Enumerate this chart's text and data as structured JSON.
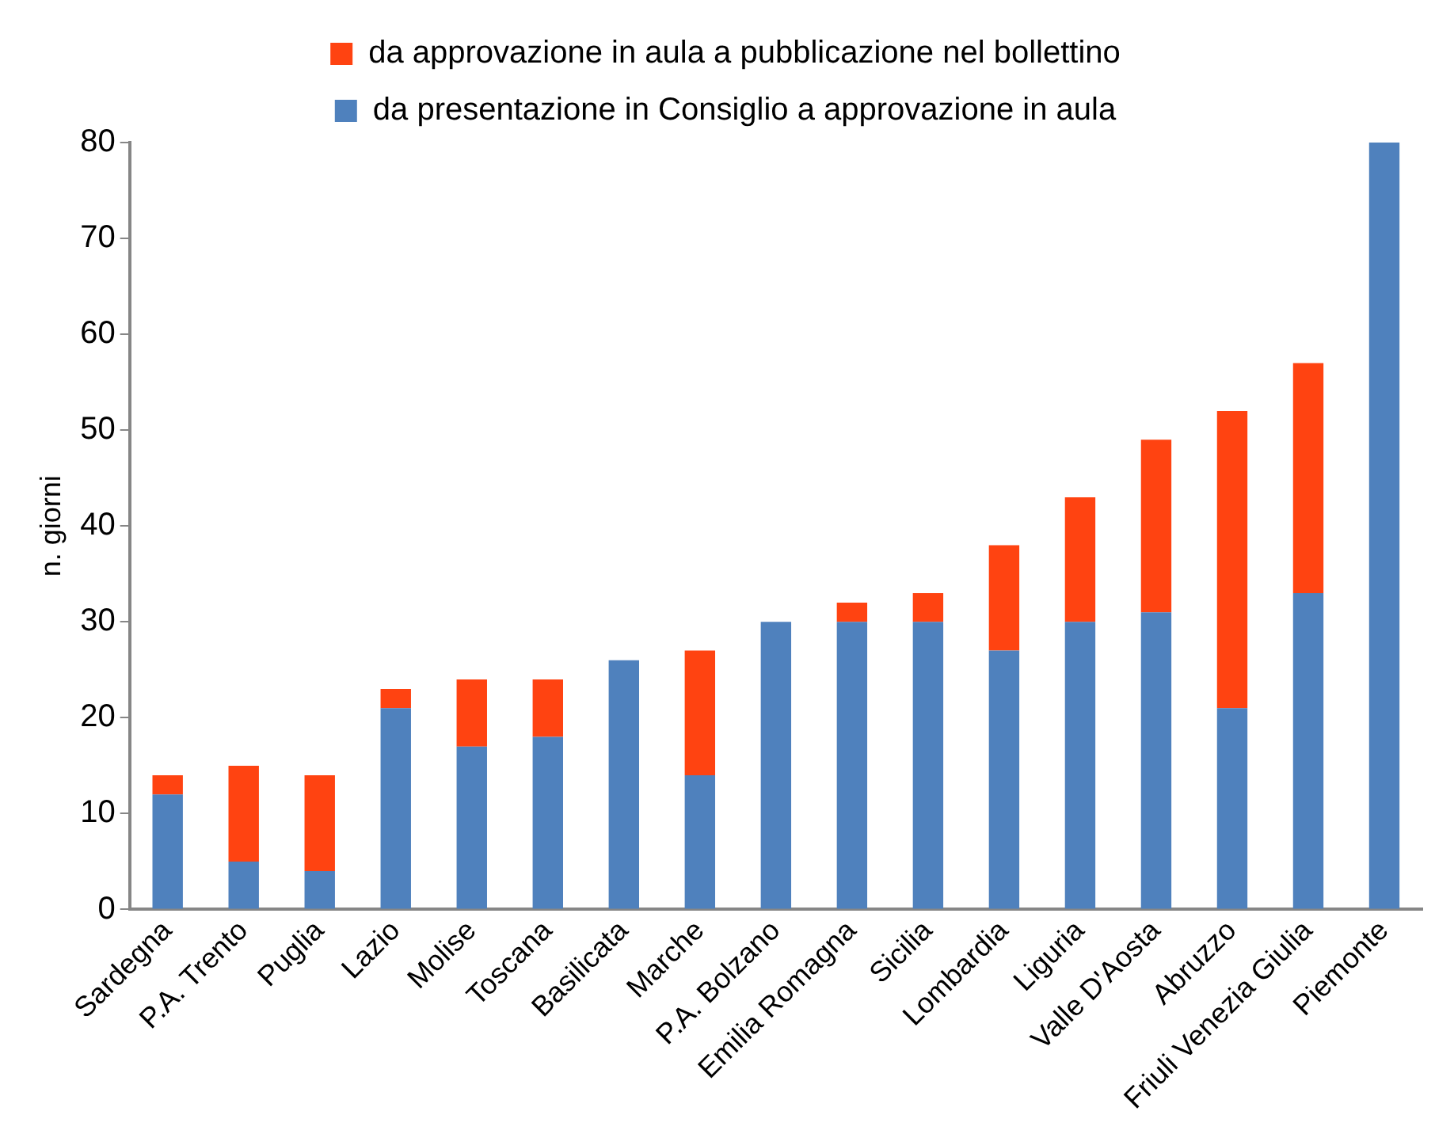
{
  "chart_data": {
    "type": "bar",
    "stacked": true,
    "ylabel": "n. giorni",
    "categories": [
      "Sardegna",
      "P.A. Trento",
      "Puglia",
      "Lazio",
      "Molise",
      "Toscana",
      "Basilicata",
      "Marche",
      "P.A. Bolzano",
      "Emilia Romagna",
      "Sicilia",
      "Lombardia",
      "Liguria",
      "Valle D'Aosta",
      "Abruzzo",
      "Friuli Venezia Giulia",
      "Piemonte"
    ],
    "series": [
      {
        "name": "da presentazione in Consiglio a approvazione in aula",
        "color": "#4f81bd",
        "values": [
          12,
          5,
          4,
          21,
          17,
          18,
          26,
          14,
          30,
          30,
          30,
          27,
          30,
          31,
          21,
          33,
          80
        ]
      },
      {
        "name": "da approvazione in aula a pubblicazione nel bollettino",
        "color": "#ff4311",
        "values": [
          2,
          10,
          10,
          2,
          7,
          6,
          0,
          13,
          0,
          2,
          3,
          11,
          13,
          18,
          31,
          24,
          0
        ]
      }
    ],
    "ylim": [
      0,
      80
    ],
    "yticks": [
      0,
      10,
      20,
      30,
      40,
      50,
      60,
      70,
      80
    ],
    "grid": false,
    "legend": "top"
  }
}
